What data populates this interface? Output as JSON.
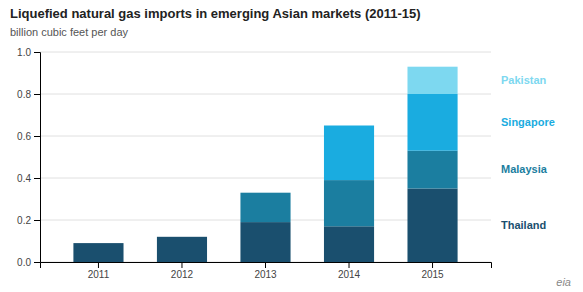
{
  "chart_data": {
    "type": "bar",
    "title": "Liquefied natural gas imports in emerging Asian markets (2011-15)",
    "subtitle": "billion cubic feet per day",
    "categories": [
      "2011",
      "2012",
      "2013",
      "2014",
      "2015"
    ],
    "series": [
      {
        "name": "Thailand",
        "color": "#1a4f6e",
        "values": [
          0.09,
          0.12,
          0.19,
          0.17,
          0.35
        ]
      },
      {
        "name": "Malaysia",
        "color": "#1b7ea0",
        "values": [
          0.0,
          0.0,
          0.14,
          0.22,
          0.18
        ]
      },
      {
        "name": "Singapore",
        "color": "#1aace0",
        "values": [
          0.0,
          0.0,
          0.0,
          0.26,
          0.27
        ]
      },
      {
        "name": "Pakistan",
        "color": "#7dd8f0",
        "values": [
          0.0,
          0.0,
          0.0,
          0.0,
          0.13
        ]
      }
    ],
    "stacked": true,
    "ylim": [
      0,
      1.0
    ],
    "yticks": [
      {
        "value": 0,
        "label": "0.0"
      },
      0.2,
      0.4,
      0.6,
      0.8,
      {
        "value": 1,
        "label": "1.0"
      }
    ],
    "grid": true,
    "legend": "right",
    "annotations": [
      "eia"
    ]
  }
}
